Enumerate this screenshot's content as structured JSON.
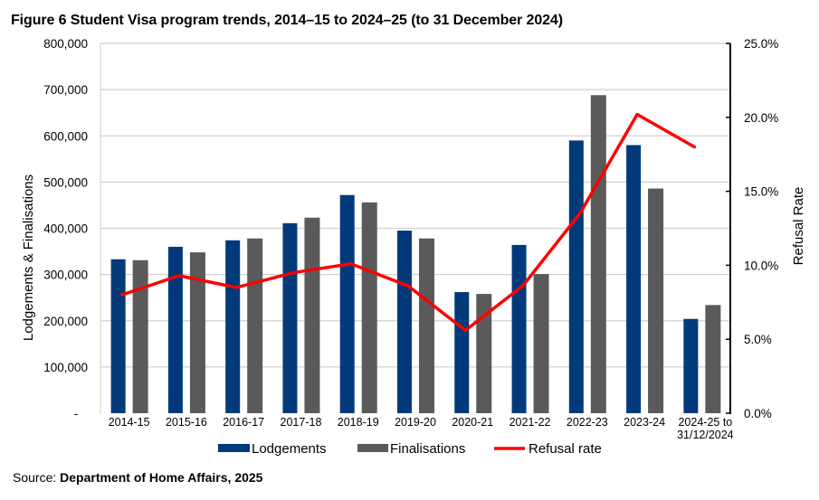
{
  "source": {
    "prefix": "Source:",
    "name": "Department of Home Affairs, 2025"
  },
  "colors": {
    "lodgements": "#003a7a",
    "finalisations": "#5a5a5a",
    "refusal": "#ff0000",
    "grid": "#d0d0d0"
  },
  "chart_data": {
    "type": "bar",
    "title": "Figure 6 Student Visa program trends, 2014–15 to 2024–25 (to 31 December 2024)",
    "categories": [
      "2014-15",
      "2015-16",
      "2016-17",
      "2017-18",
      "2018-19",
      "2019-20",
      "2020-21",
      "2021-22",
      "2022-23",
      "2023-24",
      "2024-25 to 31/12/2024"
    ],
    "category_lines": [
      [
        "2014-15"
      ],
      [
        "2015-16"
      ],
      [
        "2016-17"
      ],
      [
        "2017-18"
      ],
      [
        "2018-19"
      ],
      [
        "2019-20"
      ],
      [
        "2020-21"
      ],
      [
        "2021-22"
      ],
      [
        "2022-23"
      ],
      [
        "2023-24"
      ],
      [
        "2024-25 to",
        "31/12/2024"
      ]
    ],
    "series": [
      {
        "name": "Lodgements",
        "type": "bar",
        "axis": "left",
        "values": [
          333000,
          360000,
          374000,
          411000,
          472000,
          395000,
          262000,
          364000,
          590000,
          580000,
          204000
        ]
      },
      {
        "name": "Finalisations",
        "type": "bar",
        "axis": "left",
        "values": [
          331000,
          348000,
          378000,
          423000,
          456000,
          378000,
          258000,
          301000,
          688000,
          486000,
          234000
        ]
      },
      {
        "name": "Refusal rate",
        "type": "line",
        "axis": "right",
        "values": [
          8.0,
          9.3,
          8.5,
          9.5,
          10.1,
          8.6,
          5.6,
          8.6,
          13.5,
          20.2,
          18.0
        ]
      }
    ],
    "ylabel": "Lodgements & Finalisations",
    "y2label": "Refusal Rate",
    "ylim": [
      0,
      800000
    ],
    "y2lim": [
      0,
      25
    ],
    "yticks": [
      0,
      100000,
      200000,
      300000,
      400000,
      500000,
      600000,
      700000,
      800000
    ],
    "ytick_labels": [
      "-",
      "100,000",
      "200,000",
      "300,000",
      "400,000",
      "500,000",
      "600,000",
      "700,000",
      "800,000"
    ],
    "y2ticks": [
      0,
      5,
      10,
      15,
      20,
      25
    ],
    "y2tick_labels": [
      "0.0%",
      "5.0%",
      "10.0%",
      "15.0%",
      "20.0%",
      "25.0%"
    ],
    "grid": true,
    "legend": {
      "position": "bottom",
      "entries": [
        "Lodgements",
        "Finalisations",
        "Refusal rate"
      ]
    }
  }
}
